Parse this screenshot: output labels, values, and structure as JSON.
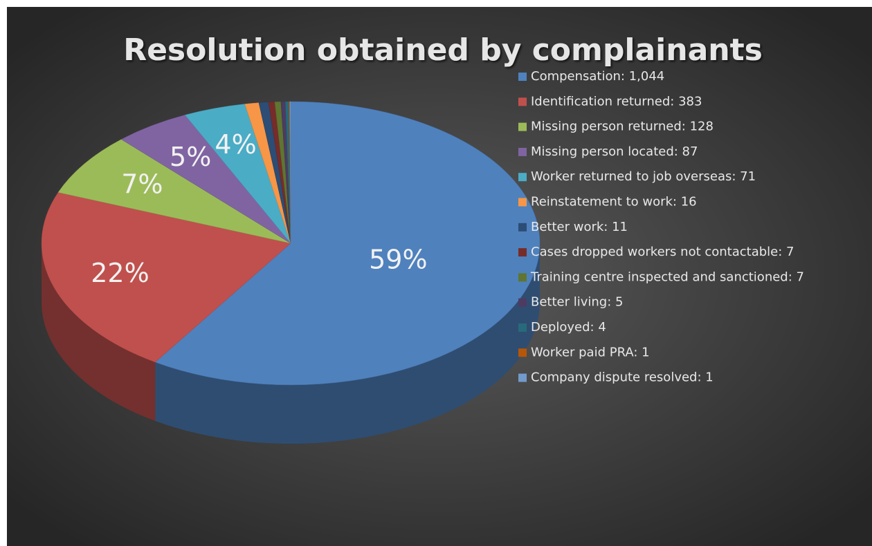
{
  "chart_data": {
    "type": "pie",
    "title": "Resolution obtained by complainants",
    "categories": [
      "Compensation: 1,044",
      "Identification returned: 383",
      "Missing person returned: 128",
      "Missing person located: 87",
      "Worker returned to job overseas: 71",
      "Reinstatement to work: 16",
      "Better work: 11",
      "Cases dropped workers not contactable: 7",
      "Training centre inspected and sanctioned: 7",
      "Better living: 5",
      "Deployed: 4",
      "Worker paid PRA: 1",
      "Company dispute resolved: 1"
    ],
    "values": [
      1044,
      383,
      128,
      87,
      71,
      16,
      11,
      7,
      7,
      5,
      4,
      1,
      1
    ],
    "value_labels": [
      "59%",
      "22%",
      "7%",
      "5%",
      "4%",
      null,
      null,
      null,
      null,
      null,
      null,
      null,
      null
    ],
    "colors": [
      "#4f81bd",
      "#c0504d",
      "#9bbb59",
      "#8064a2",
      "#4bacc6",
      "#f79646",
      "#2c4d75",
      "#772c2a",
      "#5f7530",
      "#4d3b62",
      "#276a7c",
      "#b65708",
      "#729aca"
    ],
    "legend": "right"
  }
}
